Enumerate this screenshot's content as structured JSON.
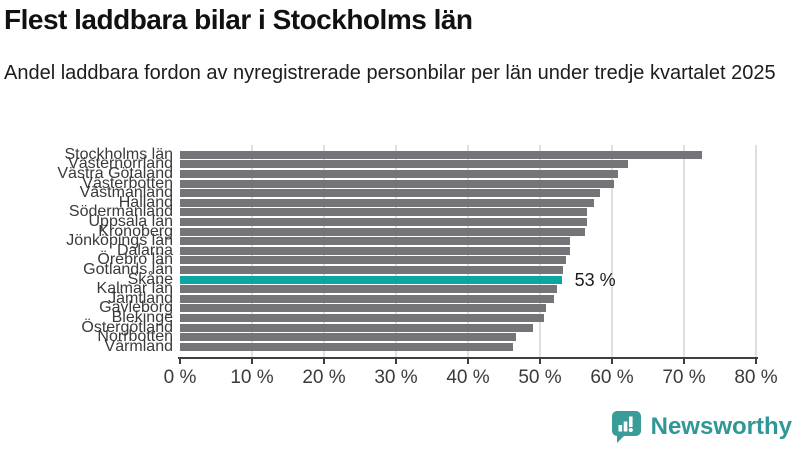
{
  "header": {
    "title": "Flest laddbara bilar i Stockholms län",
    "subtitle": "Andel laddbara fordon av nyregistrerade personbilar per län under tredje kvartalet 2025"
  },
  "chart_data": {
    "type": "bar",
    "orientation": "horizontal",
    "title": "Flest laddbara bilar i Stockholms län",
    "subtitle": "Andel laddbara fordon av nyregistrerade personbilar per län under tredje kvartalet 2025",
    "categories": [
      "Stockholms län",
      "Västernorrland",
      "Västra Götaland",
      "Västerbotten",
      "Västmanland",
      "Halland",
      "Södermanland",
      "Uppsala län",
      "Kronoberg",
      "Jönköpings län",
      "Dalarna",
      "Örebro län",
      "Gotlands län",
      "Skåne",
      "Kalmar län",
      "Jämtland",
      "Gävleborg",
      "Blekinge",
      "Östergötland",
      "Norrbotten",
      "Värmland"
    ],
    "values": [
      72.5,
      62.2,
      60.8,
      60.3,
      58.4,
      57.5,
      56.5,
      56.5,
      56.2,
      54.2,
      54.1,
      53.6,
      53.2,
      53.0,
      52.4,
      52.0,
      50.9,
      50.5,
      49.0,
      46.6,
      46.3
    ],
    "highlight_index": 13,
    "highlight_label": "53 %",
    "x_ticks": [
      "0 %",
      "10 %",
      "20 %",
      "30 %",
      "40 %",
      "50 %",
      "60 %",
      "70 %",
      "80 %"
    ],
    "xlim": [
      0,
      80
    ],
    "grid": "on",
    "colors": {
      "bar": "#6e6e74",
      "highlight": "#00a29c",
      "gridline": "#e0e0e0",
      "axis": "#3f3f3f",
      "tick_text": "#3a3a3a"
    }
  },
  "footer": {
    "brand": "Newsworthy",
    "brand_color": "#2f9795",
    "logo_icon": "bar-chart-speech-bubble"
  }
}
